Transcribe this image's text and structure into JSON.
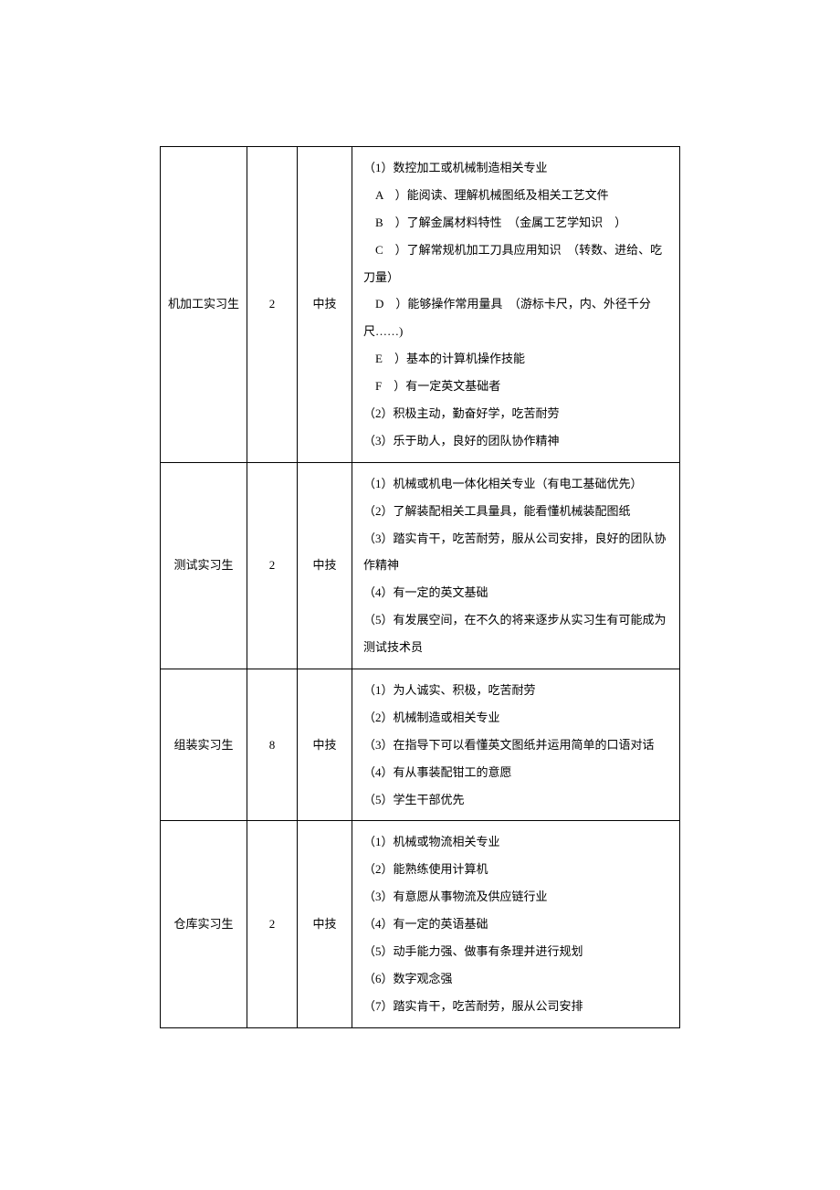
{
  "table": {
    "rows": [
      {
        "position": "机加工实习生",
        "count": "2",
        "level": "中技",
        "requirements": [
          "（1）数控加工或机械制造相关专业",
          "　A　）能阅读、理解机械图纸及相关工艺文件",
          "　B　）了解金属材料特性　（金属工艺学知识　）",
          "　C　）了解常规机加工刀具应用知识　（转数、进给、吃刀量）",
          "　D　）能够操作常用量具　（游标卡尺，内、外径千分尺……)",
          "　E　）基本的计算机操作技能",
          "　F　）有一定英文基础者",
          "（2）积极主动，勤奋好学，吃苦耐劳",
          "（3）乐于助人，良好的团队协作精神"
        ]
      },
      {
        "position": "测试实习生",
        "count": "2",
        "level": "中技",
        "requirements": [
          "（1）机械或机电一体化相关专业（有电工基础优先）",
          "（2）了解装配相关工具量具，能看懂机械装配图纸",
          "（3）踏实肯干，吃苦耐劳，服从公司安排，良好的团队协作精神",
          "（4）有一定的英文基础",
          "（5）有发展空间，在不久的将来逐步从实习生有可能成为测试技术员"
        ]
      },
      {
        "position": "组装实习生",
        "count": "8",
        "level": "中技",
        "requirements": [
          "（1）为人诚实、积极，吃苦耐劳",
          "（2）机械制造或相关专业",
          "（3）在指导下可以看懂英文图纸并运用简单的口语对话",
          "（4）有从事装配钳工的意愿",
          "（5）学生干部优先"
        ]
      },
      {
        "position": "仓库实习生",
        "count": "2",
        "level": "中技",
        "requirements": [
          "（1）机械或物流相关专业",
          "（2）能熟练使用计算机",
          "（3）有意愿从事物流及供应链行业",
          "（4）有一定的英语基础",
          "（5）动手能力强、做事有条理并进行规划",
          "（6）数字观念强",
          "（7）踏实肯干，吃苦耐劳，服从公司安排"
        ]
      }
    ]
  }
}
